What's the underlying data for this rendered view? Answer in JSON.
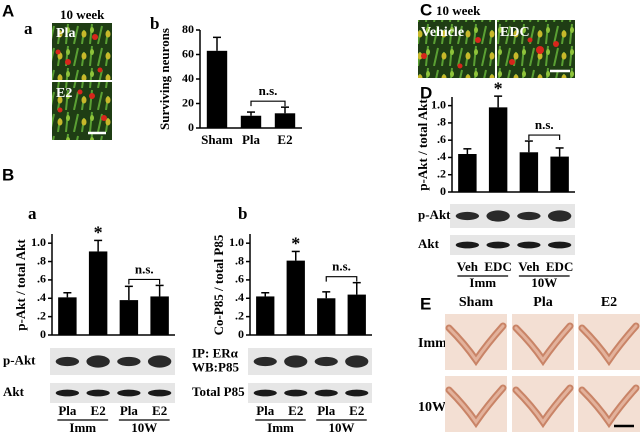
{
  "panels": [
    "A",
    "B",
    "C",
    "D",
    "E"
  ],
  "images": {
    "A": {
      "label": "a",
      "caption": "10 week",
      "tiles": [
        "Pla",
        "E2"
      ]
    },
    "C": {
      "caption": "10 week",
      "tiles": [
        "Vehicle",
        "EDC"
      ]
    },
    "E": {
      "columns": [
        "Sham",
        "Pla",
        "E2"
      ],
      "rows": [
        "Imm",
        "10W"
      ]
    }
  },
  "chart_data": [
    {
      "type": "bar",
      "label": "b",
      "ylabel": "Surviving neurons",
      "categories": [
        "Sham",
        "Pla",
        "E2"
      ],
      "values": [
        63,
        10,
        12
      ],
      "errors": [
        11,
        3,
        5
      ],
      "color": "#000000",
      "ylim": [
        0,
        80
      ],
      "yticks": [
        0,
        20,
        40,
        60,
        80
      ],
      "annotations": [
        "n.s."
      ]
    },
    {
      "type": "bar",
      "label": "a",
      "ylabel": "p-Akt / total Akt",
      "categories": [
        "Pla",
        "E2",
        "Pla",
        "E2"
      ],
      "groups": [
        "Imm",
        "10W"
      ],
      "values": [
        0.41,
        0.91,
        0.38,
        0.42
      ],
      "errors": [
        0.05,
        0.12,
        0.15,
        0.12
      ],
      "color": "#000000",
      "ylim": [
        0,
        1.1
      ],
      "yticks": [
        0,
        {
          "value": 0.2,
          "label": ".2"
        },
        {
          "value": 0.4,
          "label": ".4"
        },
        {
          "value": 0.6,
          "label": ".6"
        },
        {
          "value": 0.8,
          "label": ".8"
        },
        {
          "value": 1,
          "label": "1.0"
        }
      ],
      "annotations": [
        "*",
        "n.s."
      ],
      "blots": [
        [
          "p-Akt"
        ],
        [
          "Akt"
        ]
      ]
    },
    {
      "type": "bar",
      "label": "b",
      "ylabel": "Co-P85 / total P85",
      "categories": [
        "Pla",
        "E2",
        "Pla",
        "E2"
      ],
      "groups": [
        "Imm",
        "10W"
      ],
      "values": [
        0.42,
        0.81,
        0.4,
        0.44
      ],
      "errors": [
        0.04,
        0.1,
        0.07,
        0.13
      ],
      "color": "#000000",
      "ylim": [
        0,
        1.1
      ],
      "yticks": [
        0,
        {
          "value": 0.2,
          "label": ".2"
        },
        {
          "value": 0.4,
          "label": ".4"
        },
        {
          "value": 0.6,
          "label": ".6"
        },
        {
          "value": 0.8,
          "label": ".8"
        },
        {
          "value": 1,
          "label": "1.0"
        }
      ],
      "annotations": [
        "*",
        "n.s."
      ],
      "blots": [
        [
          "IP: ERα",
          "WB:P85"
        ],
        [
          "Total P85"
        ]
      ]
    },
    {
      "type": "bar",
      "ylabel": "p-Akt / total Akt",
      "categories": [
        "Veh",
        "EDC",
        "Veh",
        "EDC"
      ],
      "groups": [
        "Imm",
        "10W"
      ],
      "values": [
        0.44,
        0.98,
        0.46,
        0.41
      ],
      "errors": [
        0.06,
        0.13,
        0.13,
        0.1
      ],
      "color": "#000000",
      "ylim": [
        0,
        1.1
      ],
      "yticks": [
        0,
        {
          "value": 0.2,
          "label": ".2"
        },
        {
          "value": 0.4,
          "label": ".4"
        },
        {
          "value": 0.6,
          "label": ".6"
        },
        {
          "value": 0.8,
          "label": ".8"
        },
        {
          "value": 1,
          "label": "1.0"
        }
      ],
      "annotations": [
        "*",
        "n.s."
      ],
      "blots": [
        [
          "p-Akt"
        ],
        [
          "Akt"
        ]
      ]
    }
  ]
}
